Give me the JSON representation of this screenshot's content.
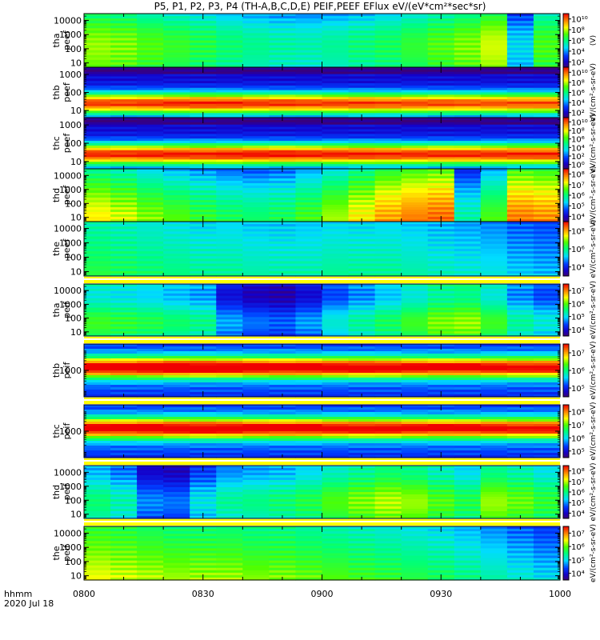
{
  "title": "P5, P1, P2, P3, P4 (TH-A,B,C,D,E) PEIF,PEEF EFlux eV/(eV*cm²*sec*sr)",
  "footer": {
    "time_label": "hhmm",
    "date_label": "2020 Jul 18"
  },
  "chart_data": {
    "type": "heatmap",
    "x_axis": {
      "ticks": [
        "0800",
        "0830",
        "0900",
        "0930",
        "1000"
      ],
      "range": [
        "08:00",
        "10:00"
      ]
    },
    "panels": [
      {
        "name": "tha peef",
        "line1": "tha",
        "line2": "peef",
        "yticks": [
          "10",
          "100",
          "1000",
          "10000"
        ],
        "ymin": 5,
        "ymax": 30000,
        "cb_ticks": [
          "10²",
          "10⁴",
          "10⁶",
          "10⁸",
          "10¹⁰"
        ],
        "cb_min": 1,
        "cb_max": 11,
        "colorbar_label": "(V)",
        "columns": [
          0.62,
          0.6,
          0.56,
          0.53,
          0.5,
          0.46,
          0.43,
          0.41,
          0.4,
          0.42,
          0.45,
          0.48,
          0.52,
          0.56,
          0.6,
          0.66,
          0.32,
          0.55
        ]
      },
      {
        "name": "thb peef",
        "line1": "thb",
        "line2": "peef",
        "yticks": [
          "10",
          "100",
          "1000"
        ],
        "ymin": 4,
        "ymax": 2500,
        "cb_ticks": [
          "10²",
          "10⁴",
          "10⁶",
          "10⁸",
          "10¹⁰"
        ],
        "cb_min": 1,
        "cb_max": 11,
        "colorbar_label": "eV/(cm²-s-sr-eV)",
        "columns": [
          0.78,
          0.78,
          0.79,
          0.8,
          0.8,
          0.8,
          0.79,
          0.79,
          0.78,
          0.78,
          0.78,
          0.77,
          0.77,
          0.77,
          0.76,
          0.76,
          0.76,
          0.76
        ]
      },
      {
        "name": "thc peef",
        "line1": "thc",
        "line2": "peef",
        "yticks": [
          "10",
          "100",
          "1000"
        ],
        "ymin": 4,
        "ymax": 2500,
        "cb_ticks": [
          "10⁰",
          "10²",
          "10⁴",
          "10⁶",
          "10⁸",
          "10¹⁰"
        ],
        "cb_min": 0,
        "cb_max": 11,
        "colorbar_label": "eV/(cm²-s-sr-eV)",
        "columns": [
          0.8,
          0.8,
          0.81,
          0.81,
          0.81,
          0.82,
          0.82,
          0.82,
          0.81,
          0.81,
          0.81,
          0.8,
          0.8,
          0.8,
          0.8,
          0.8,
          0.8,
          0.8
        ]
      },
      {
        "name": "thd peef",
        "line1": "thd",
        "line2": "peef",
        "yticks": [
          "10",
          "100",
          "1000",
          "10000"
        ],
        "ymin": 5,
        "ymax": 30000,
        "cb_ticks": [
          "10⁴",
          "10⁵",
          "10⁶",
          "10⁷",
          "10⁸"
        ],
        "cb_min": 3.5,
        "cb_max": 8.5,
        "colorbar_label": "eV/(cm²-s-sr-eV)",
        "columns": [
          0.7,
          0.66,
          0.6,
          0.56,
          0.52,
          0.48,
          0.46,
          0.48,
          0.54,
          0.62,
          0.7,
          0.78,
          0.82,
          0.84,
          0.4,
          0.55,
          0.82,
          0.8
        ]
      },
      {
        "name": "the peef",
        "line1": "the",
        "line2": "peef",
        "yticks": [
          "10",
          "100",
          "1000",
          "10000"
        ],
        "ymin": 5,
        "ymax": 30000,
        "cb_ticks": [
          "10⁴",
          "10⁶",
          "10⁸"
        ],
        "cb_min": 3.5,
        "cb_max": 9.5,
        "colorbar_label": "eV/(cm²-s-sr-eV)",
        "columns": [
          0.5,
          0.48,
          0.46,
          0.44,
          0.42,
          0.42,
          0.4,
          0.4,
          0.4,
          0.42,
          0.42,
          0.42,
          0.4,
          0.38,
          0.36,
          0.34,
          0.3,
          0.28
        ]
      },
      {
        "name": "tha peif",
        "line1": "tha",
        "line2": "peif",
        "yticks": [
          "10",
          "100",
          "1000",
          "10000"
        ],
        "ymin": 5,
        "ymax": 30000,
        "cb_ticks": [
          "10⁴",
          "10⁵",
          "10⁶",
          "10⁷"
        ],
        "cb_min": 3.5,
        "cb_max": 7.5,
        "colorbar_label": "eV/(cm²-s-sr-eV)",
        "columns": [
          0.52,
          0.5,
          0.48,
          0.45,
          0.42,
          0.25,
          0.2,
          0.18,
          0.24,
          0.34,
          0.4,
          0.46,
          0.52,
          0.58,
          0.6,
          0.52,
          0.4,
          0.34
        ]
      },
      {
        "name": "thb peif",
        "line1": "thb",
        "line2": "peif",
        "yticks": [
          "1000"
        ],
        "ymin": 50,
        "ymax": 20000,
        "cb_ticks": [
          "10⁵",
          "10⁶",
          "10⁷"
        ],
        "cb_min": 4.5,
        "cb_max": 7.5,
        "colorbar_label": "eV/(cm²-s-sr-eV)",
        "columns": [
          0.68,
          0.7,
          0.72,
          0.72,
          0.71,
          0.7,
          0.7,
          0.69,
          0.69,
          0.68,
          0.68,
          0.67,
          0.67,
          0.66,
          0.66,
          0.66,
          0.65,
          0.65
        ]
      },
      {
        "name": "thc peif",
        "line1": "thc",
        "line2": "peif",
        "yticks": [
          "1000"
        ],
        "ymin": 50,
        "ymax": 20000,
        "cb_ticks": [
          "10⁵",
          "10⁶",
          "10⁷",
          "10⁸"
        ],
        "cb_min": 4.5,
        "cb_max": 8.5,
        "colorbar_label": "eV/(cm²-s-sr-eV)",
        "columns": [
          0.66,
          0.67,
          0.68,
          0.68,
          0.68,
          0.68,
          0.67,
          0.67,
          0.67,
          0.66,
          0.66,
          0.66,
          0.65,
          0.65,
          0.65,
          0.65,
          0.64,
          0.64
        ]
      },
      {
        "name": "thd peif",
        "line1": "thd",
        "line2": "peif",
        "yticks": [
          "10",
          "100",
          "1000",
          "10000"
        ],
        "ymin": 5,
        "ymax": 30000,
        "cb_ticks": [
          "10⁴",
          "10⁵",
          "10⁶",
          "10⁷",
          "10⁸"
        ],
        "cb_min": 3.5,
        "cb_max": 8.5,
        "colorbar_label": "eV/(cm²-s-sr-eV)",
        "columns": [
          0.44,
          0.38,
          0.22,
          0.2,
          0.32,
          0.4,
          0.42,
          0.44,
          0.48,
          0.54,
          0.58,
          0.62,
          0.6,
          0.54,
          0.48,
          0.6,
          0.56,
          0.5
        ]
      },
      {
        "name": "the peif",
        "line1": "the",
        "line2": "peif",
        "yticks": [
          "10",
          "100",
          "1000",
          "10000"
        ],
        "ymin": 5,
        "ymax": 30000,
        "cb_ticks": [
          "10⁴",
          "10⁵",
          "10⁶",
          "10⁷"
        ],
        "cb_min": 3.5,
        "cb_max": 7.5,
        "colorbar_label": "eV/(cm²-s-sr-eV)",
        "columns": [
          0.64,
          0.62,
          0.6,
          0.58,
          0.58,
          0.58,
          0.56,
          0.56,
          0.54,
          0.52,
          0.5,
          0.48,
          0.46,
          0.44,
          0.4,
          0.36,
          0.32,
          0.28
        ]
      }
    ]
  }
}
